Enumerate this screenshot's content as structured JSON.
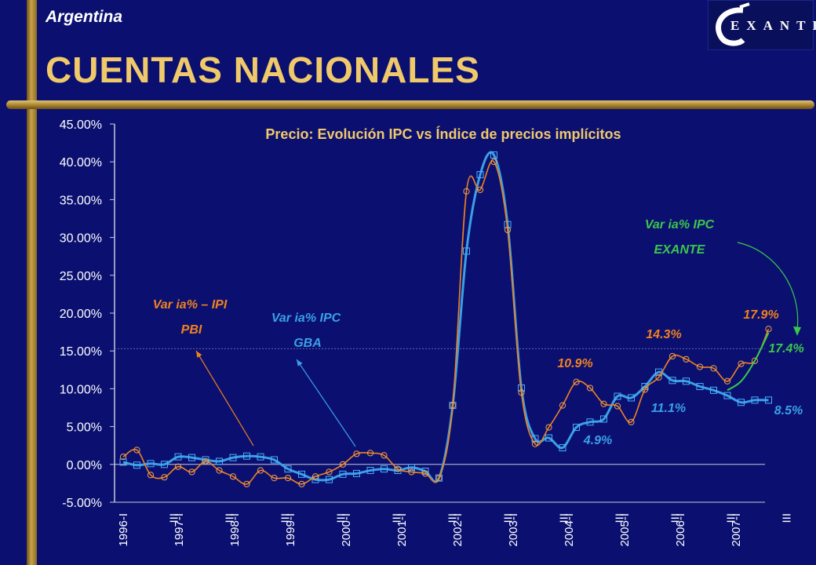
{
  "header": {
    "region": "Argentina",
    "title": "CUENTAS NACIONALES",
    "logo_text": "EXANTE"
  },
  "chart_data": {
    "type": "line",
    "title": "Precio: Evolución IPC vs Índice de precios implícitos",
    "ylim": [
      -5,
      45
    ],
    "yticks": [
      "-5.00%",
      "0.00%",
      "5.00%",
      "10.00%",
      "15.00%",
      "20.00%",
      "25.00%",
      "30.00%",
      "35.00%",
      "40.00%",
      "45.00%"
    ],
    "x_tick_labels": [
      "1996-I",
      "III",
      "1997-I",
      "III",
      "1998-I",
      "III",
      "1999-I",
      "III",
      "2000-I",
      "III",
      "2001-I",
      "III",
      "2002-I",
      "III",
      "2003-I",
      "III",
      "2004-I",
      "III",
      "2005-I",
      "III",
      "2006-I",
      "III",
      "2007-I",
      "III"
    ],
    "reference_line": 15.3,
    "series": [
      {
        "name": "Var ia% – IPI PBI",
        "color": "#f0821e",
        "marker": "circle",
        "values": [
          1.0,
          1.9,
          -1.4,
          -1.7,
          -0.3,
          -1.0,
          0.4,
          -0.8,
          -1.6,
          -2.6,
          -0.8,
          -1.8,
          -1.8,
          -2.6,
          -1.6,
          -1.0,
          0.0,
          1.4,
          1.5,
          1.2,
          -0.6,
          -1.0,
          -1.2,
          -1.8,
          7.8,
          36.1,
          36.3,
          40.0,
          31.0,
          9.5,
          2.7,
          4.9,
          7.8,
          10.9,
          10.1,
          8.0,
          7.7,
          5.6,
          9.9,
          11.5,
          14.3,
          13.9,
          12.9,
          12.7,
          11.0,
          13.3,
          13.7,
          17.9
        ],
        "x_start": 0
      },
      {
        "name": "Var ia% IPC GBA",
        "color": "#3aa0e6",
        "marker": "square",
        "values": [
          0.3,
          -0.1,
          0.1,
          0.0,
          1.0,
          0.9,
          0.6,
          0.4,
          0.9,
          1.1,
          1.0,
          0.6,
          -0.6,
          -1.3,
          -2.0,
          -2.0,
          -1.3,
          -1.2,
          -0.8,
          -0.6,
          -0.8,
          -0.4,
          -0.9,
          -1.8,
          7.8,
          28.2,
          38.3,
          40.9,
          31.7,
          10.1,
          3.4,
          3.5,
          2.2,
          4.9,
          5.6,
          6.0,
          9.0,
          8.8,
          10.3,
          12.2,
          11.1,
          11.0,
          10.3,
          9.8,
          9.1,
          8.2,
          8.5,
          8.5
        ],
        "x_start": 0
      },
      {
        "name": "Var ia% IPC EXANTE",
        "color": "#3ac84a",
        "marker": "none",
        "values": [
          9.8,
          11.0,
          13.7,
          17.4
        ],
        "x_start": 44
      }
    ],
    "annotations": [
      {
        "text": "Var ia% – IPI",
        "color": "#f0821e"
      },
      {
        "text": "PBI",
        "color": "#f0821e"
      },
      {
        "text": "Var ia% IPC",
        "color": "#3aa0e6"
      },
      {
        "text": "GBA",
        "color": "#3aa0e6"
      },
      {
        "text": "Var ia% IPC",
        "color": "#3ac84a"
      },
      {
        "text": "EXANTE",
        "color": "#3ac84a"
      },
      {
        "text": "10.9%",
        "color": "#f0821e"
      },
      {
        "text": "14.3%",
        "color": "#f0821e"
      },
      {
        "text": "17.9%",
        "color": "#f0821e"
      },
      {
        "text": "17.4%",
        "color": "#3ac84a"
      },
      {
        "text": "4.9%",
        "color": "#3aa0e6"
      },
      {
        "text": "11.1%",
        "color": "#3aa0e6"
      },
      {
        "text": "8.5%",
        "color": "#3aa0e6"
      }
    ]
  }
}
